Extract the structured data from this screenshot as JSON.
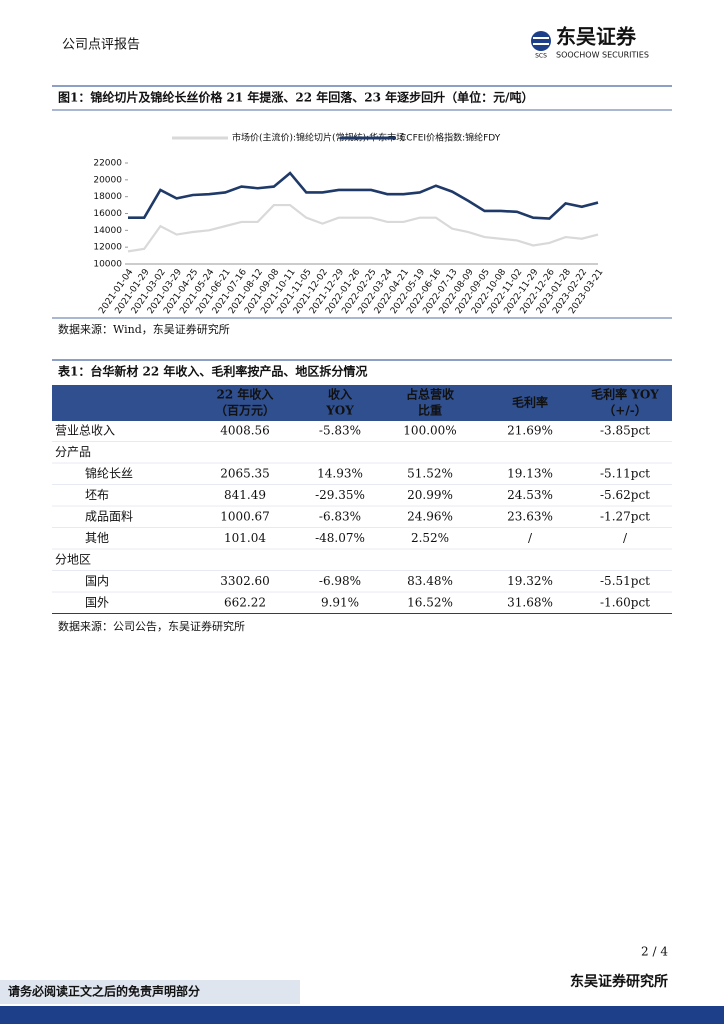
{
  "header": {
    "report_type": "公司点评报告",
    "logo_name": "东吴证券",
    "logo_english": "SOOCHOW SECURITIES",
    "logo_abbr": "SCS"
  },
  "figure": {
    "title": "图1：锦纶切片及锦纶长丝价格 21 年提涨、22 年回落、23 年逐步回升（单位：元/吨）",
    "source": "数据来源：Wind，东吴证券研究所"
  },
  "chart_data": {
    "type": "line",
    "categories": [
      "2021-01-04",
      "2021-01-29",
      "2021-03-02",
      "2021-03-29",
      "2021-04-25",
      "2021-05-24",
      "2021-06-21",
      "2021-07-16",
      "2021-08-12",
      "2021-09-08",
      "2021-10-11",
      "2021-11-05",
      "2021-12-02",
      "2021-12-29",
      "2022-01-26",
      "2022-02-25",
      "2022-03-24",
      "2022-04-21",
      "2022-05-19",
      "2022-06-16",
      "2022-07-13",
      "2022-08-09",
      "2022-09-05",
      "2022-10-08",
      "2022-11-02",
      "2022-11-29",
      "2022-12-26",
      "2023-01-28",
      "2023-02-22",
      "2023-03-21"
    ],
    "series": [
      {
        "name": "市场价(主流价):锦纶切片(常规纺):华东市场",
        "color": "#d9d9d9",
        "values": [
          11500,
          11800,
          14500,
          13500,
          13800,
          14000,
          14500,
          15000,
          15000,
          17000,
          17000,
          15500,
          14800,
          15500,
          15500,
          15500,
          15000,
          15000,
          15500,
          15500,
          14200,
          13800,
          13200,
          13000,
          12800,
          12200,
          12500,
          13200,
          13000,
          13500
        ]
      },
      {
        "name": "CCFEI价格指数:锦纶FDY",
        "color": "#1f3a68",
        "values": [
          15500,
          15500,
          18800,
          17800,
          18200,
          18300,
          18500,
          19200,
          19000,
          19200,
          20800,
          18500,
          18500,
          18800,
          18800,
          18800,
          18300,
          18300,
          18500,
          19300,
          18600,
          17500,
          16300,
          16300,
          16200,
          15500,
          15400,
          17200,
          16800,
          17300
        ]
      }
    ],
    "ylim": [
      10000,
      22000
    ],
    "yticks": [
      10000,
      12000,
      14000,
      16000,
      18000,
      20000,
      22000
    ]
  },
  "table": {
    "title": "表1：台华新材 22 年收入、毛利率按产品、地区拆分情况",
    "header": [
      [
        ""
      ],
      [
        "22 年收入",
        "（百万元）"
      ],
      [
        "收入",
        "YOY"
      ],
      [
        "占总营收",
        "比重"
      ],
      [
        "毛利率"
      ],
      [
        "毛利率 YOY",
        "（+/-）"
      ]
    ],
    "rows": [
      [
        "营业总收入",
        "4008.56",
        "-5.83%",
        "100.00%",
        "21.69%",
        "-3.85pct"
      ],
      [
        "分产品"
      ],
      [
        "锦纶长丝",
        "2065.35",
        "14.93%",
        "51.52%",
        "19.13%",
        "-5.11pct"
      ],
      [
        "坯布",
        "841.49",
        "-29.35%",
        "20.99%",
        "24.53%",
        "-5.62pct"
      ],
      [
        "成品面料",
        "1000.67",
        "-6.83%",
        "24.96%",
        "23.63%",
        "-1.27pct"
      ],
      [
        "其他",
        "101.04",
        "-48.07%",
        "2.52%",
        "/",
        "/"
      ],
      [
        "分地区"
      ],
      [
        "国内",
        "3302.60",
        "-6.98%",
        "83.48%",
        "19.32%",
        "-5.51pct"
      ],
      [
        "国外",
        "662.22",
        "9.91%",
        "16.52%",
        "31.68%",
        "-1.60pct"
      ]
    ],
    "source": "数据来源：公司公告，东吴证券研究所"
  },
  "footer": {
    "page": "2 / 4",
    "org": "东吴证券研究所",
    "disclaimer": "请务必阅读正文之后的免责声明部分"
  }
}
